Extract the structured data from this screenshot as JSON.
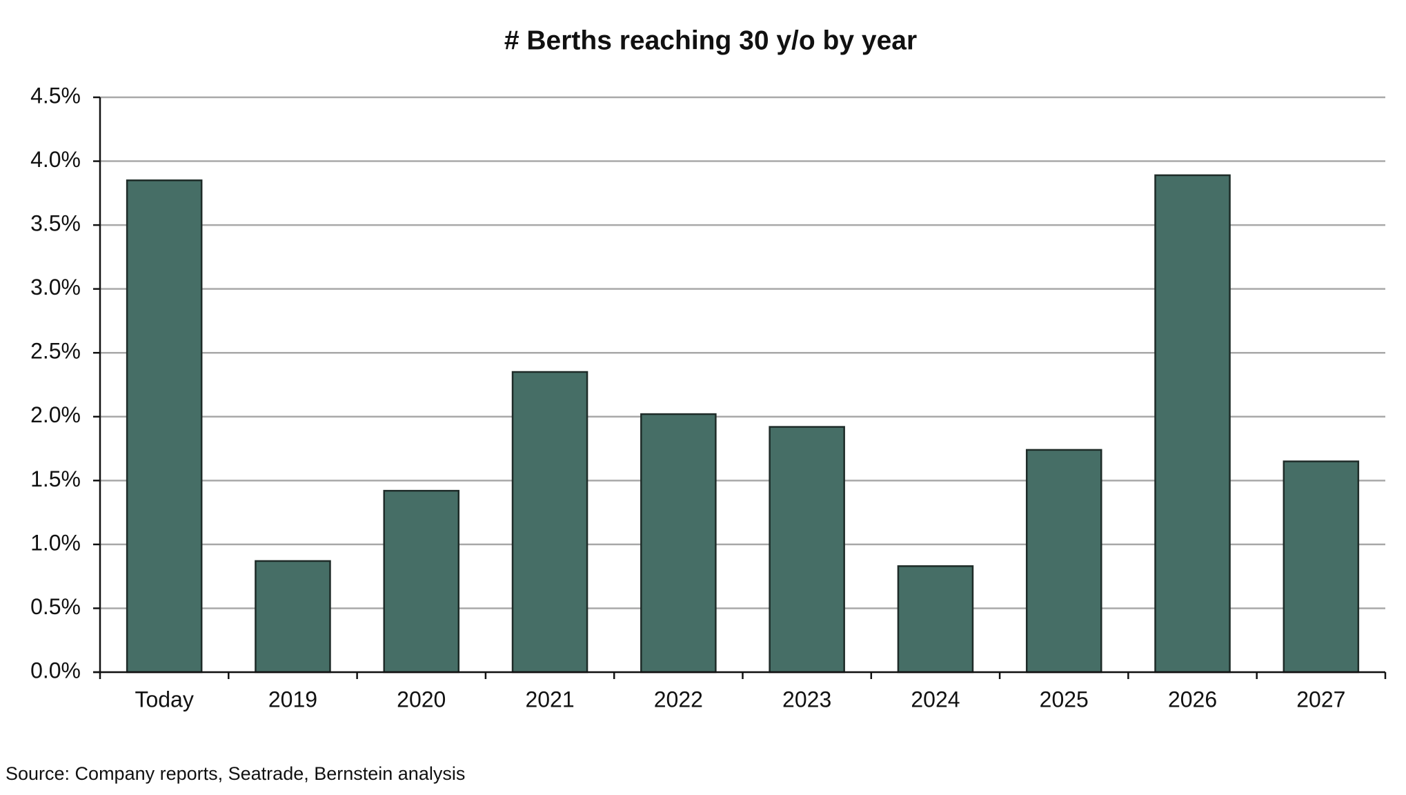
{
  "chart_data": {
    "type": "bar",
    "title": "# Berths reaching 30 y/o by year",
    "categories": [
      "Today",
      "2019",
      "2020",
      "2021",
      "2022",
      "2023",
      "2024",
      "2025",
      "2026",
      "2027"
    ],
    "values": [
      3.85,
      0.87,
      1.42,
      2.35,
      2.02,
      1.92,
      0.83,
      1.74,
      3.89,
      1.65
    ],
    "color": "#466e66",
    "ylim": [
      0,
      4.5
    ],
    "yticks": [
      {
        "value": 0,
        "label": "0.0%"
      },
      {
        "value": 0.5,
        "label": "0.5%"
      },
      {
        "value": 1,
        "label": "1.0%"
      },
      {
        "value": 1.5,
        "label": "1.5%"
      },
      {
        "value": 2,
        "label": "2.0%"
      },
      {
        "value": 2.5,
        "label": "2.5%"
      },
      {
        "value": 3,
        "label": "3.0%"
      },
      {
        "value": 3.5,
        "label": "3.5%"
      },
      {
        "value": 4,
        "label": "4.0%"
      },
      {
        "value": 4.5,
        "label": "4.5%"
      }
    ],
    "grid": true,
    "source": "Source: Company reports, Seatrade, Bernstein analysis"
  }
}
